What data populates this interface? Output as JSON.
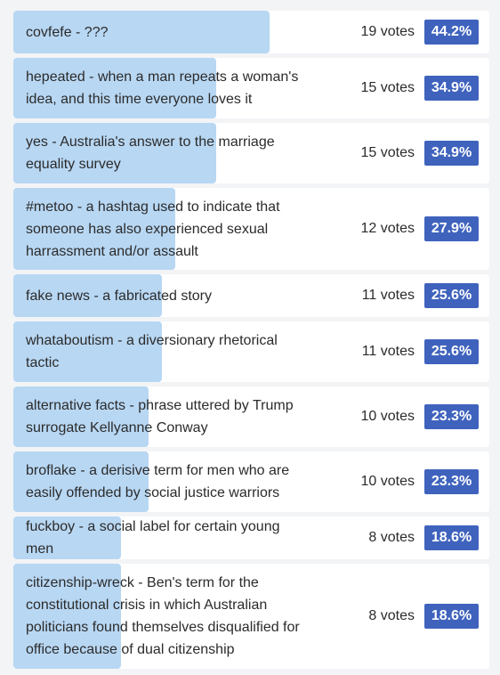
{
  "poll": {
    "options": [
      {
        "label": "covfefe - ???",
        "votes": "19 votes",
        "percent": "44.2%",
        "share": 0.442
      },
      {
        "label": "hepeated - when a man repeats a woman's idea, and this time everyone loves it",
        "votes": "15 votes",
        "percent": "34.9%",
        "share": 0.349
      },
      {
        "label": "yes - Australia's answer to the marriage equality survey",
        "votes": "15 votes",
        "percent": "34.9%",
        "share": 0.349
      },
      {
        "label": "#metoo - a hashtag used to indicate that someone has also experienced sexual harrassment and/or assault",
        "votes": "12 votes",
        "percent": "27.9%",
        "share": 0.279
      },
      {
        "label": "fake news - a fabricated story",
        "votes": "11 votes",
        "percent": "25.6%",
        "share": 0.256
      },
      {
        "label": "whataboutism - a diversionary rhetorical tactic",
        "votes": "11 votes",
        "percent": "25.6%",
        "share": 0.256
      },
      {
        "label": "alternative facts - phrase uttered by Trump surrogate Kellyanne Conway",
        "votes": "10 votes",
        "percent": "23.3%",
        "share": 0.233
      },
      {
        "label": "broflake - a derisive term for men who are easily offended by social justice warriors",
        "votes": "10 votes",
        "percent": "23.3%",
        "share": 0.233
      },
      {
        "label": "fuckboy - a social label for certain young men",
        "votes": "8 votes",
        "percent": "18.6%",
        "share": 0.186
      },
      {
        "label": "citizenship-wreck - Ben's term for the constitutional crisis in which Australian politicians found themselves disqualified for office because of dual citizenship",
        "votes": "8 votes",
        "percent": "18.6%",
        "share": 0.186
      }
    ]
  },
  "colors": {
    "bar": "#b8d7f3",
    "badge": "#3f63bd",
    "row_background": "#ffffff",
    "page_background": "#f3f4f6"
  }
}
